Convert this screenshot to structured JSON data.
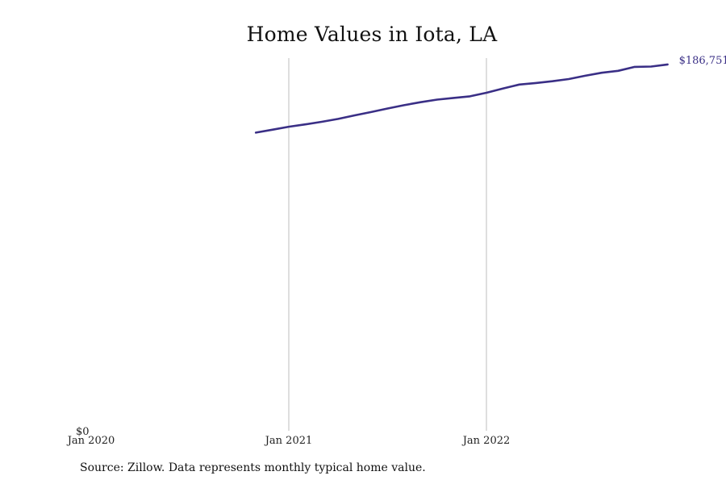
{
  "chart_data": {
    "type": "line",
    "title": "Home Values in Iota, LA",
    "xlabel": "",
    "ylabel": "",
    "x_tick_labels": [
      "Jan 2020",
      "Jan 2021",
      "Jan 2022"
    ],
    "y_tick_labels": [
      "$0"
    ],
    "ylim": [
      0,
      190000
    ],
    "grid": "vertical lines at Jan 2021 and Jan 2022",
    "legend": "none",
    "line_color": "#3a2f86",
    "end_label": "$186,751",
    "series": [
      {
        "x": [
          "2020-11",
          "2020-12",
          "2021-01",
          "2021-02",
          "2021-03",
          "2021-04",
          "2021-05",
          "2021-06",
          "2021-07",
          "2021-08",
          "2021-09",
          "2021-10",
          "2021-11",
          "2021-12",
          "2022-01",
          "2022-02",
          "2022-03",
          "2022-04",
          "2022-05",
          "2022-06",
          "2022-07",
          "2022-08",
          "2022-09",
          "2022-10",
          "2022-11",
          "2022-12"
        ],
        "values": [
          152000,
          153500,
          155000,
          156200,
          157500,
          159000,
          160800,
          162500,
          164300,
          166000,
          167500,
          168800,
          169700,
          170500,
          172300,
          174500,
          176500,
          177300,
          178200,
          179300,
          181000,
          182500,
          183500,
          185500,
          185700,
          186751
        ]
      }
    ]
  },
  "source": "Source: Zillow. Data represents monthly typical home value."
}
